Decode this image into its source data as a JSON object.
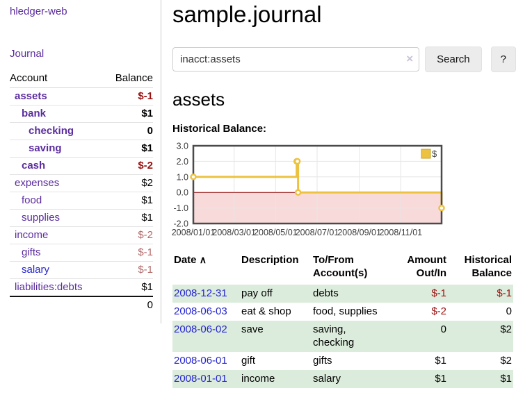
{
  "colors": {
    "link_purple": "#5b2d9e",
    "link_blue": "#2424d0",
    "negative_red": "#9a1010",
    "negative_faded_red": "#b36a6a",
    "row_highlight_green": "#dcecdc",
    "chart_line_gold": "#edc240",
    "chart_negative_fill": "#f9dada",
    "chart_zero_line": "#8b0000"
  },
  "sidebar": {
    "brand": "hledger-web",
    "journal_link": "Journal",
    "accounts": {
      "headers": {
        "account": "Account",
        "balance": "Balance"
      },
      "rows": [
        {
          "name": "assets",
          "balance": "$-1"
        },
        {
          "name": "bank",
          "balance": "$1"
        },
        {
          "name": "checking",
          "balance": "0"
        },
        {
          "name": "saving",
          "balance": "$1"
        },
        {
          "name": "cash",
          "balance": "$-2"
        },
        {
          "name": "expenses",
          "balance": "$2"
        },
        {
          "name": "food",
          "balance": "$1"
        },
        {
          "name": "supplies",
          "balance": "$1"
        },
        {
          "name": "income",
          "balance": "$-2"
        },
        {
          "name": "gifts",
          "balance": "$-1"
        },
        {
          "name": "salary",
          "balance": "$-1"
        },
        {
          "name": "liabilities:debts",
          "balance": "$1"
        }
      ],
      "total": "0"
    }
  },
  "header": {
    "title": "sample.journal"
  },
  "search": {
    "value": "inacct:assets",
    "clear_icon": "×",
    "button_label": "Search",
    "help_label": "?"
  },
  "account_page": {
    "title": "assets",
    "chart_title": "Historical Balance:"
  },
  "chart_data": {
    "type": "line",
    "step": true,
    "title": "Historical Balance:",
    "series": [
      {
        "name": "$",
        "color": "#edc240",
        "points": [
          [
            "2008-01-01",
            1
          ],
          [
            "2008-06-01",
            2
          ],
          [
            "2008-06-02",
            2
          ],
          [
            "2008-06-03",
            0
          ],
          [
            "2008-12-31",
            -1
          ]
        ]
      }
    ],
    "xlim": [
      "2008-01-01",
      "2008-12-31"
    ],
    "ylim": [
      -2,
      3
    ],
    "yticks": [
      {
        "v": 3,
        "label": "3.0"
      },
      {
        "v": 2,
        "label": "2.0"
      },
      {
        "v": 1,
        "label": "1.0"
      },
      {
        "v": 0,
        "label": "0.0"
      },
      {
        "v": -1,
        "label": "-1.0"
      },
      {
        "v": -2,
        "label": "-2.0"
      }
    ],
    "xticks": [
      {
        "d": "2008-01-01",
        "label": "2008/01/01"
      },
      {
        "d": "2008-03-01",
        "label": "2008/03/01"
      },
      {
        "d": "2008-05-01",
        "label": "2008/05/01"
      },
      {
        "d": "2008-07-01",
        "label": "2008/07/01"
      },
      {
        "d": "2008-09-01",
        "label": "2008/09/01"
      },
      {
        "d": "2008-11-01",
        "label": "2008/11/01"
      }
    ],
    "legend": {
      "label": "$",
      "position": "top-right"
    },
    "grid": true,
    "negative_region_fill": "#f9dada",
    "zero_line_color": "#8b0000"
  },
  "register": {
    "headers": {
      "date": "Date",
      "sort_indicator": "∧",
      "description": "Description",
      "accounts": "To/From Account(s)",
      "amount": "Amount Out/In",
      "balance": "Historical Balance"
    },
    "rows": [
      {
        "date": "2008-12-31",
        "description": "pay off",
        "accounts": "debts",
        "amount": "$-1",
        "balance": "$-1"
      },
      {
        "date": "2008-06-03",
        "description": "eat & shop",
        "accounts": "food, supplies",
        "amount": "$-2",
        "balance": "0"
      },
      {
        "date": "2008-06-02",
        "description": "save",
        "accounts": "saving, checking",
        "amount": "0",
        "balance": "$2"
      },
      {
        "date": "2008-06-01",
        "description": "gift",
        "accounts": "gifts",
        "amount": "$1",
        "balance": "$2"
      },
      {
        "date": "2008-01-01",
        "description": "income",
        "accounts": "salary",
        "amount": "$1",
        "balance": "$1"
      }
    ]
  }
}
